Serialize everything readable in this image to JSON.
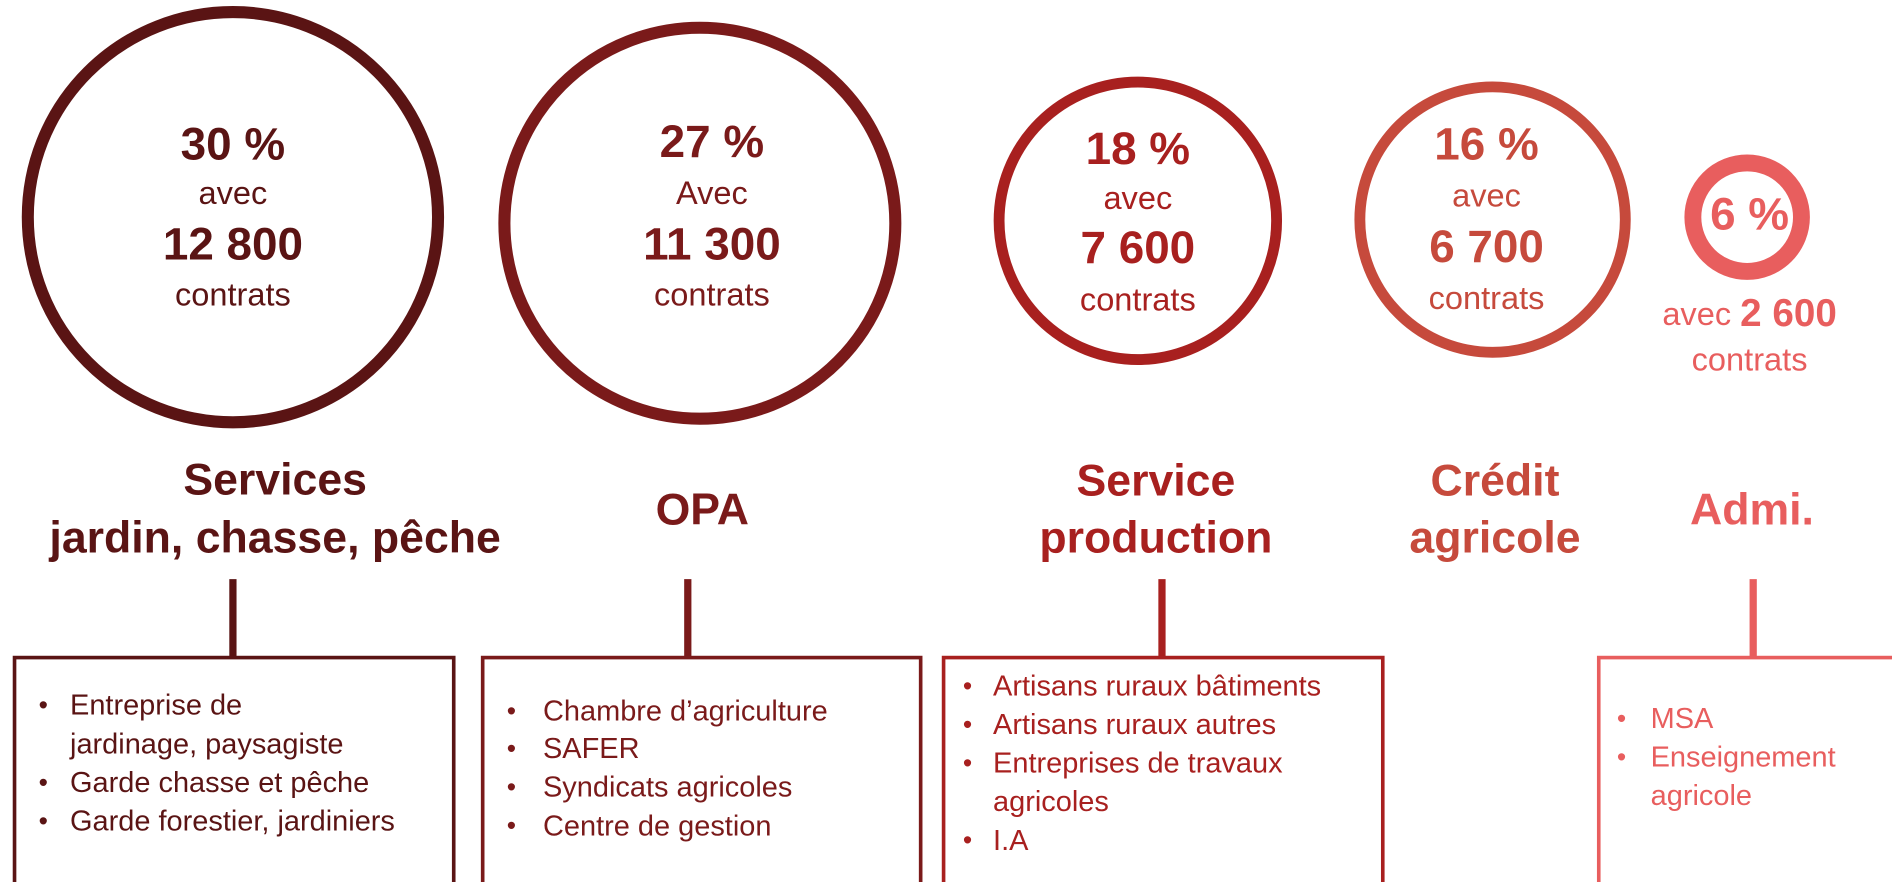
{
  "groups": [
    {
      "percent": "30 %",
      "avec": "avec",
      "count": "12 800",
      "unit": "contrats",
      "color": "#5a1414",
      "title": [
        "Services",
        "jardin, chasse, pêche"
      ],
      "items": [
        [
          "Entreprise de",
          "jardinage, paysagiste"
        ],
        [
          "Garde chasse et pêche"
        ],
        [
          "Garde forestier, jardiniers"
        ]
      ]
    },
    {
      "percent": "27 %",
      "avec": "Avec",
      "count": "11 300",
      "unit": "contrats",
      "color": "#7a1a1a",
      "title": [
        "OPA"
      ],
      "items": [
        [
          "Chambre d’agriculture"
        ],
        [
          "SAFER"
        ],
        [
          "Syndicats agricoles"
        ],
        [
          "Centre de gestion"
        ]
      ]
    },
    {
      "percent": "18 %",
      "avec": "avec",
      "count": "7 600",
      "unit": "contrats",
      "color": "#a8201f",
      "title": [
        "Service",
        "production"
      ],
      "items": [
        [
          "Artisans ruraux bâtiments"
        ],
        [
          "Artisans ruraux autres"
        ],
        [
          "Entreprises de travaux",
          "agricoles"
        ],
        [
          "I.A"
        ]
      ]
    },
    {
      "percent": "16 %",
      "avec": "avec",
      "count": "6 700",
      "unit": "contrats",
      "color": "#c64a3c",
      "title": [
        "Crédit",
        "agricole"
      ],
      "items": []
    },
    {
      "percent": "6 %",
      "avec": "avec",
      "count": "2 600",
      "unit": "contrats",
      "color": "#e85e5e",
      "title": [
        "Admi."
      ],
      "items": [
        [
          "MSA"
        ],
        [
          "Enseignement",
          "agricole"
        ]
      ]
    }
  ]
}
